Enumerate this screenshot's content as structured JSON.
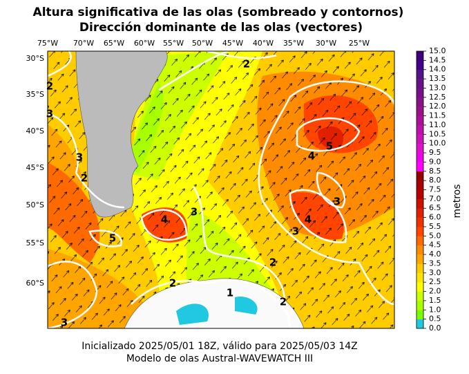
{
  "title": [
    "Altura significativa de las olas (sombreado y contornos)",
    "Dirección dominante de las olas (vectores)"
  ],
  "lon_labels": [
    "75°W",
    "70°W",
    "65°W",
    "60°W",
    "55°W",
    "50°W",
    "45°W",
    "40°W",
    "35°W",
    "30°W",
    "25°W"
  ],
  "lat_labels": [
    "30°S",
    "35°S",
    "40°S",
    "45°S",
    "50°S",
    "55°S",
    "60°S"
  ],
  "contour_labels": [
    "2",
    "3",
    "3",
    "2",
    "2",
    "5",
    "4",
    "3",
    "4",
    "3",
    "4",
    "3",
    "5",
    "2",
    "1",
    "2",
    "2",
    "3"
  ],
  "colorbar": {
    "label": "metros",
    "ticks": [
      "0.0",
      "0.5",
      "1.0",
      "1.5",
      "2.0",
      "2.5",
      "3.0",
      "3.5",
      "4.0",
      "4.5",
      "5.0",
      "5.5",
      "6.0",
      "6.5",
      "7.0",
      "7.5",
      "8.0",
      "8.5",
      "9.0",
      "9.5",
      "10.0",
      "10.5",
      "11.0",
      "11.5",
      "12.0",
      "12.5",
      "13.0",
      "13.5",
      "14.0",
      "14.5",
      "15.0"
    ],
    "colors": [
      "#20c8e0",
      "#7cfc00",
      "#a8ff00",
      "#ccff00",
      "#ffff00",
      "#ffe600",
      "#ffcc00",
      "#ffa500",
      "#ff8c00",
      "#ff6a00",
      "#ff4500",
      "#f03000",
      "#e02000",
      "#cc1000",
      "#b80000",
      "#a80000",
      "#980000",
      "#ff00ff",
      "#ee00ee",
      "#dd11cc",
      "#cc11bb",
      "#bb11aa",
      "#aa1199",
      "#991188",
      "#881188",
      "#771188",
      "#661188",
      "#551188",
      "#440088",
      "#3a007a"
    ]
  },
  "footer": [
    "Inicializado 2025/05/01 18Z, válido para 2025/05/03 14Z",
    "Modelo de olas Austral-WAVEWATCH III"
  ]
}
